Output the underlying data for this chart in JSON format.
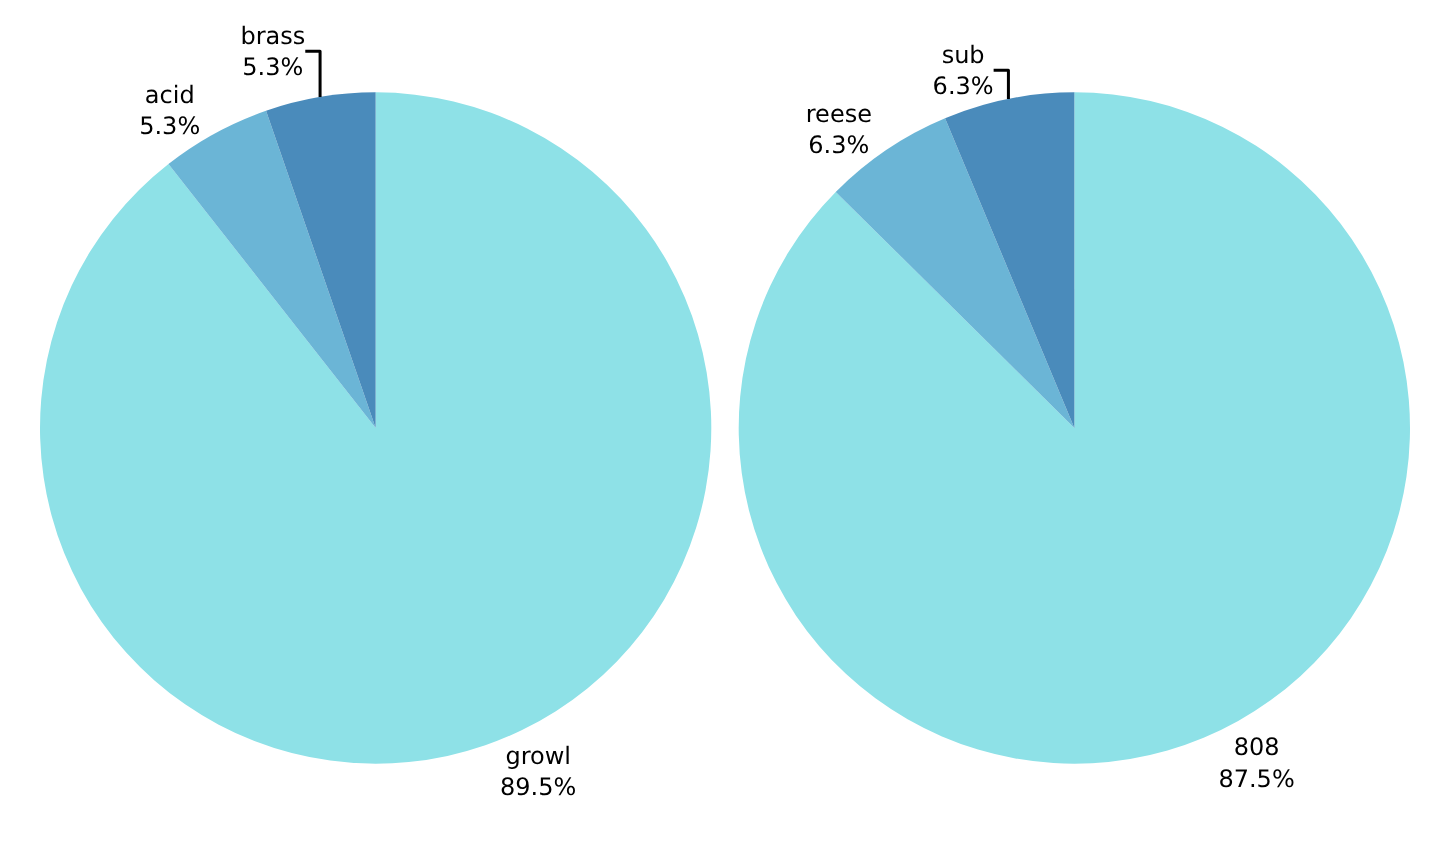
{
  "chart_data": [
    {
      "type": "pie",
      "categories": [
        "growl",
        "acid",
        "brass"
      ],
      "values": [
        89.5,
        5.3,
        5.3
      ],
      "value_labels": [
        "89.5%",
        "5.3%",
        "5.3%"
      ],
      "colors": [
        "#8ee1e7",
        "#6bb5d6",
        "#4a8bbb"
      ],
      "legend": false
    },
    {
      "type": "pie",
      "categories": [
        "808",
        "reese",
        "sub"
      ],
      "values": [
        87.5,
        6.3,
        6.3
      ],
      "value_labels": [
        "87.5%",
        "6.3%",
        "6.3%"
      ],
      "colors": [
        "#8ee1e7",
        "#6bb5d6",
        "#4a8bbb"
      ],
      "legend": false
    }
  ]
}
